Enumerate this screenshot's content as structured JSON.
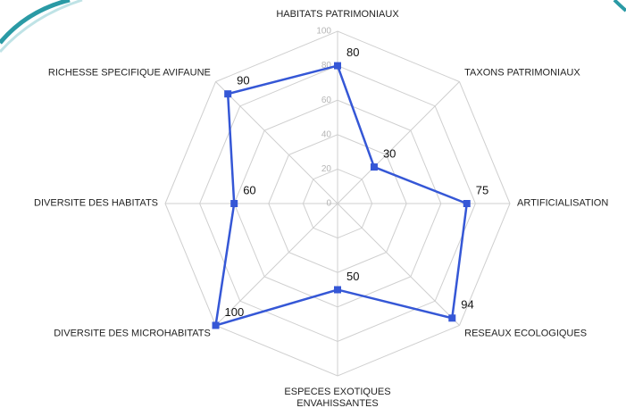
{
  "chart_data": {
    "type": "radar",
    "categories": [
      "HABITATS PATRIMONIAUX",
      "TAXONS PATRIMONIAUX",
      "ARTIFICIALISATION",
      "RESEAUX ECOLOGIQUES",
      "ESPECES EXOTIQUES ENVAHISSANTES",
      "DIVERSITE DES MICROHABITATS",
      "DIVERSITE DES HABITATS",
      "RICHESSE SPECIFIQUE AVIFAUNE"
    ],
    "values": [
      80,
      30,
      75,
      94,
      50,
      100,
      60,
      90
    ],
    "color": "#3557d6",
    "rlim": [
      0,
      100
    ],
    "rticks": [
      0,
      20,
      40,
      60,
      80,
      100
    ],
    "grid": true
  }
}
